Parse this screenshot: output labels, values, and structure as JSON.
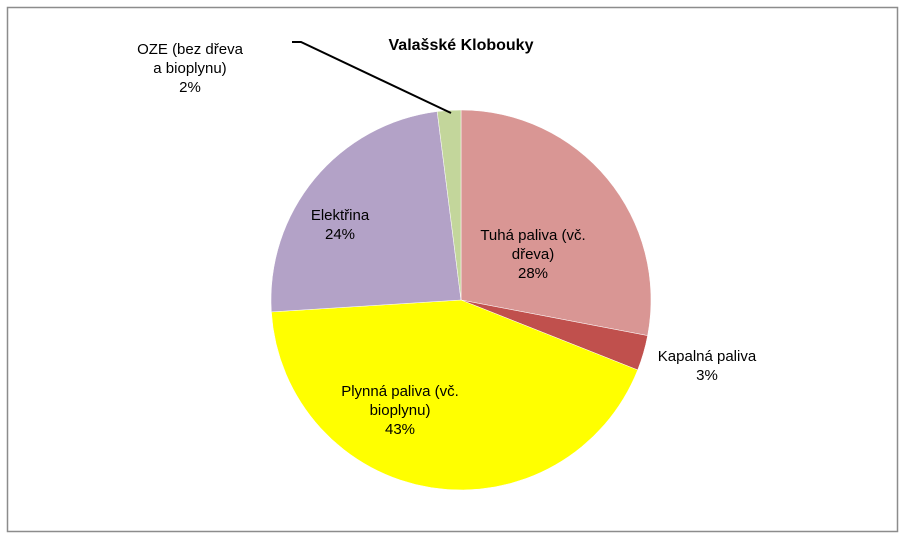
{
  "chart_data": {
    "type": "pie",
    "title": "Valašské Klobouky",
    "categories": [
      "Tuhá paliva (vč. dřeva)",
      "Kapalná paliva",
      "Plynná paliva (vč. bioplynu)",
      "Elektřina",
      "OZE (bez dřeva a bioplynu)"
    ],
    "values": [
      28,
      3,
      43,
      24,
      2
    ],
    "value_labels": [
      "28%",
      "3%",
      "43%",
      "24%",
      "2%"
    ],
    "colors": [
      "#d99694",
      "#c0504d",
      "#ffff00",
      "#b3a2c7",
      "#c3d69b"
    ]
  }
}
